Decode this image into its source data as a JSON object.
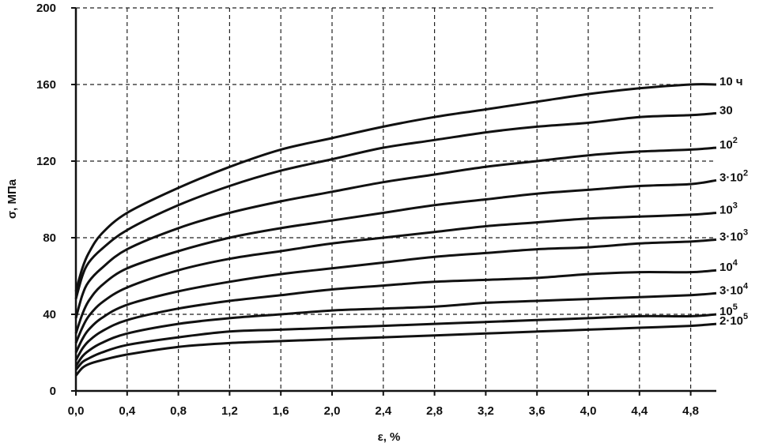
{
  "chart_data": {
    "type": "line",
    "title": "",
    "xlabel": "ε, %",
    "ylabel": "σ, МПа",
    "xlim": [
      0,
      5.0
    ],
    "ylim": [
      0,
      200
    ],
    "xticks": [
      "0,0",
      "0,4",
      "0,8",
      "1,2",
      "1,6",
      "2,0",
      "2,4",
      "2,8",
      "3,2",
      "3,6",
      "4,0",
      "4,4",
      "4,8"
    ],
    "yticks": [
      "0",
      "40",
      "80",
      "120",
      "160",
      "200"
    ],
    "grid": true,
    "x": [
      0.0,
      0.05,
      0.1,
      0.2,
      0.4,
      0.8,
      1.2,
      1.6,
      2.0,
      2.4,
      2.8,
      3.2,
      3.6,
      4.0,
      4.4,
      4.8,
      5.0
    ],
    "series": [
      {
        "label": "10 ч",
        "sup": "",
        "values": [
          52,
          64,
          72,
          82,
          93,
          106,
          117,
          126,
          132,
          138,
          143,
          147,
          151,
          155,
          158,
          160,
          160
        ]
      },
      {
        "label": "30",
        "sup": "",
        "values": [
          48,
          60,
          67,
          74,
          84,
          97,
          107,
          115,
          121,
          127,
          131,
          135,
          138,
          140,
          143,
          144,
          145
        ]
      },
      {
        "label": "10",
        "sup": "2",
        "values": [
          38,
          50,
          57,
          64,
          74,
          85,
          93,
          99,
          104,
          109,
          113,
          117,
          120,
          123,
          125,
          126,
          127
        ]
      },
      {
        "label": "3·10",
        "sup": "2",
        "values": [
          30,
          40,
          47,
          55,
          64,
          73,
          80,
          85,
          89,
          93,
          97,
          100,
          103,
          105,
          107,
          108,
          110
        ]
      },
      {
        "label": "10",
        "sup": "3",
        "values": [
          25,
          33,
          39,
          46,
          54,
          63,
          69,
          73,
          77,
          80,
          83,
          86,
          88,
          90,
          91,
          92,
          93
        ]
      },
      {
        "label": "3·10",
        "sup": "3",
        "values": [
          20,
          27,
          32,
          38,
          45,
          52,
          57,
          61,
          64,
          67,
          70,
          72,
          74,
          75,
          77,
          78,
          79
        ]
      },
      {
        "label": "10",
        "sup": "4",
        "values": [
          16,
          22,
          26,
          31,
          37,
          43,
          47,
          50,
          53,
          55,
          57,
          58,
          59,
          61,
          62,
          62,
          63
        ]
      },
      {
        "label": "3·10",
        "sup": "4",
        "values": [
          13,
          18,
          21,
          25,
          30,
          35,
          38,
          40,
          42,
          43,
          44,
          46,
          47,
          48,
          49,
          50,
          51
        ]
      },
      {
        "label": "10",
        "sup": "5",
        "values": [
          11,
          15,
          17,
          20,
          24,
          28,
          31,
          32,
          33,
          34,
          35,
          36,
          37,
          38,
          39,
          39,
          40
        ]
      },
      {
        "label": "2·10",
        "sup": "5",
        "values": [
          8,
          12,
          14,
          16,
          19,
          23,
          25,
          26,
          27,
          28,
          29,
          30,
          31,
          32,
          33,
          34,
          35
        ]
      }
    ]
  }
}
